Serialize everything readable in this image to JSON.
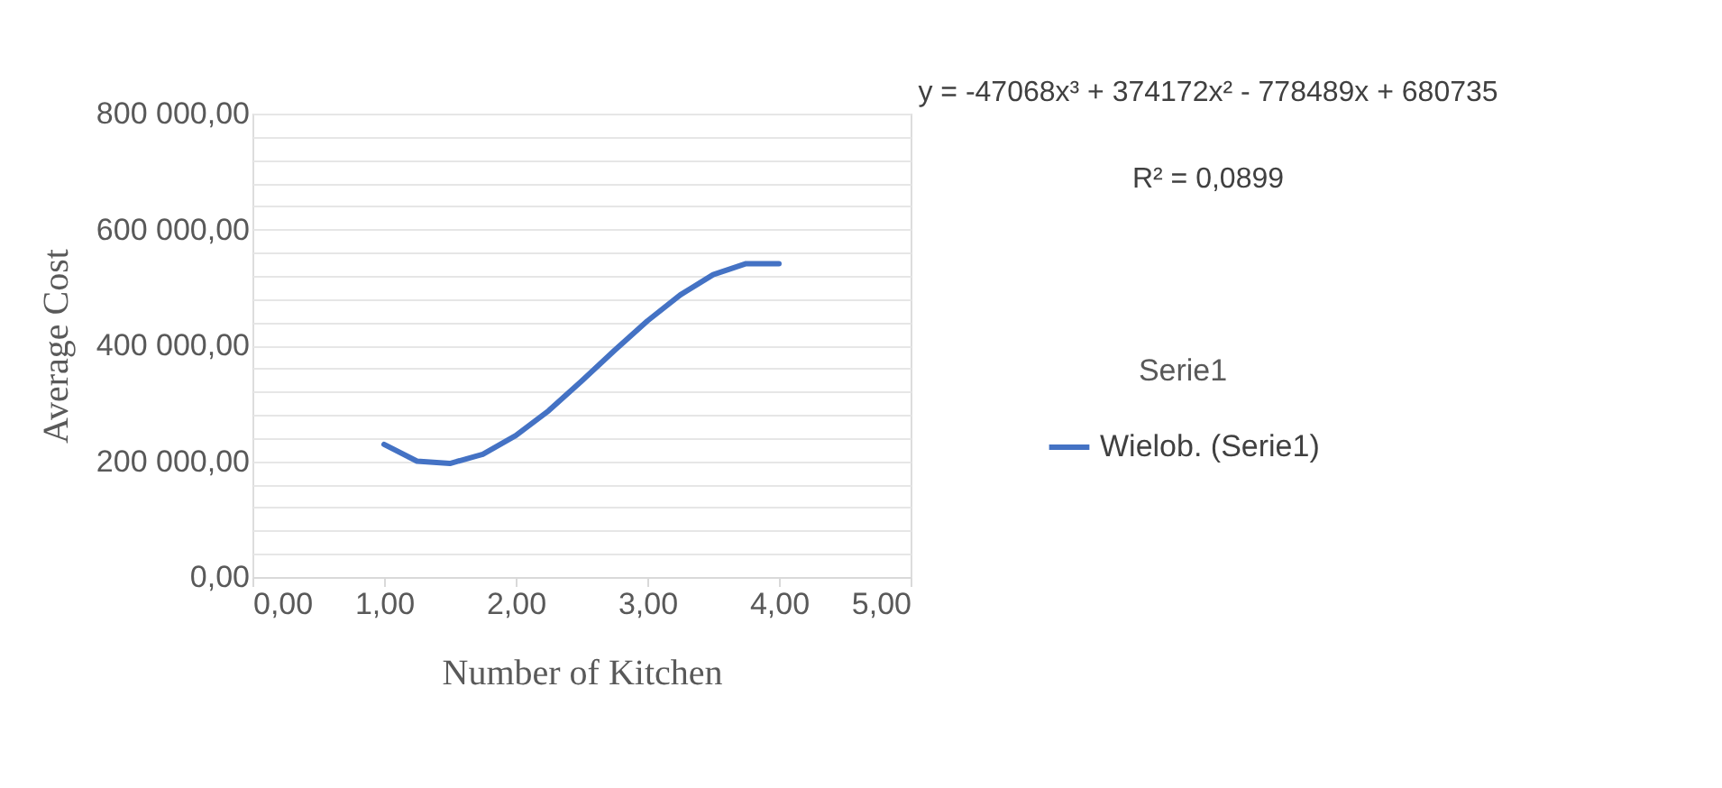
{
  "chart_data": {
    "type": "line",
    "xlabel": "Number of Kitchen",
    "ylabel": "Average Cost",
    "legend_title": "Serie1",
    "legend": "right",
    "x": [
      1,
      1.25,
      1.5,
      1.75,
      2,
      2.25,
      2.5,
      2.75,
      3,
      3.25,
      3.5,
      3.75,
      4
    ],
    "series": [
      {
        "name": "Wielob. (Serie1)",
        "color": "#4472c4",
        "values": [
          229000,
          200000,
          196000,
          212000,
          244000,
          287000,
          338000,
          391000,
          442000,
          487000,
          522000,
          541000,
          541000
        ]
      }
    ],
    "xlim": [
      0,
      5
    ],
    "xticks": [
      {
        "value": 0,
        "label": "0,00"
      },
      {
        "value": 1,
        "label": "1,00"
      },
      {
        "value": 2,
        "label": "2,00"
      },
      {
        "value": 3,
        "label": "3,00"
      },
      {
        "value": 4,
        "label": "4,00"
      },
      {
        "value": 5,
        "label": "5,00"
      }
    ],
    "ylim": [
      0,
      800000
    ],
    "yticks": [
      {
        "value": 0,
        "label": "0,00"
      },
      {
        "value": 40000,
        "label": null
      },
      {
        "value": 80000,
        "label": null
      },
      {
        "value": 120000,
        "label": null
      },
      {
        "value": 160000,
        "label": null
      },
      {
        "value": 200000,
        "label": "200 000,00"
      },
      {
        "value": 240000,
        "label": null
      },
      {
        "value": 280000,
        "label": null
      },
      {
        "value": 320000,
        "label": null
      },
      {
        "value": 360000,
        "label": null
      },
      {
        "value": 400000,
        "label": "400 000,00"
      },
      {
        "value": 440000,
        "label": null
      },
      {
        "value": 480000,
        "label": null
      },
      {
        "value": 520000,
        "label": null
      },
      {
        "value": 560000,
        "label": null
      },
      {
        "value": 600000,
        "label": "600 000,00"
      },
      {
        "value": 640000,
        "label": null
      },
      {
        "value": 680000,
        "label": null
      },
      {
        "value": 720000,
        "label": null
      },
      {
        "value": 760000,
        "label": null
      },
      {
        "value": 800000,
        "label": "800 000,00"
      }
    ],
    "grid": "y",
    "marker": "none",
    "line_style": "solid",
    "annotations": [
      "y = -47068x³ + 374172x² - 778489x + 680735",
      "R² = 0,0899"
    ]
  }
}
